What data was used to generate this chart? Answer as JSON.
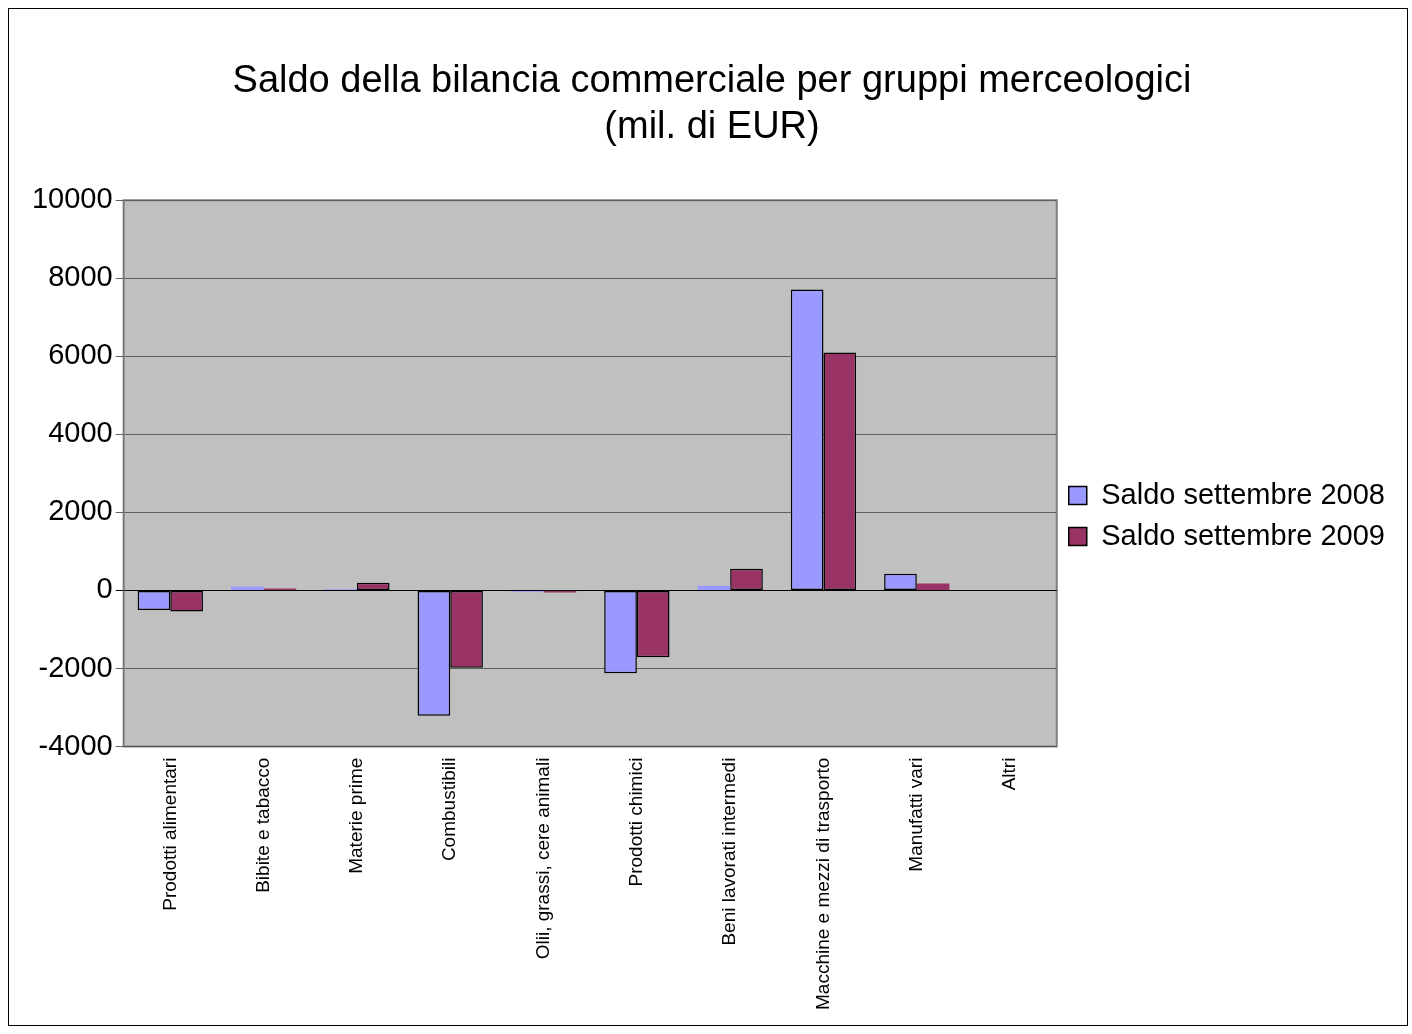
{
  "chart_data": {
    "type": "bar",
    "title": "Saldo della bilancia commerciale per gruppi merceologici",
    "subtitle": "(mil. di EUR)",
    "categories": [
      "Prodotti alimentari",
      "Bibite e tabacco",
      "Materie prime",
      "Combustibili",
      "Olii, grassi, cere animali",
      "Prodotti chimici",
      "Beni lavorati intermedi",
      "Macchine e mezzi di trasporto",
      "Manufatti vari",
      "Altri"
    ],
    "series": [
      {
        "name": "Saldo settembre 2008",
        "color": "#9999ff",
        "values": [
          -500,
          100,
          30,
          -3210,
          -30,
          -2120,
          120,
          7710,
          430,
          null
        ]
      },
      {
        "name": "Saldo settembre 2009",
        "color": "#993366",
        "values": [
          -540,
          50,
          200,
          -1980,
          -50,
          -1710,
          560,
          6100,
          180,
          null
        ]
      }
    ],
    "ylim": [
      -4000,
      10000
    ],
    "yticks": [
      -4000,
      -2000,
      0,
      2000,
      4000,
      6000,
      8000,
      10000
    ],
    "grid": "y",
    "legend": "right"
  }
}
